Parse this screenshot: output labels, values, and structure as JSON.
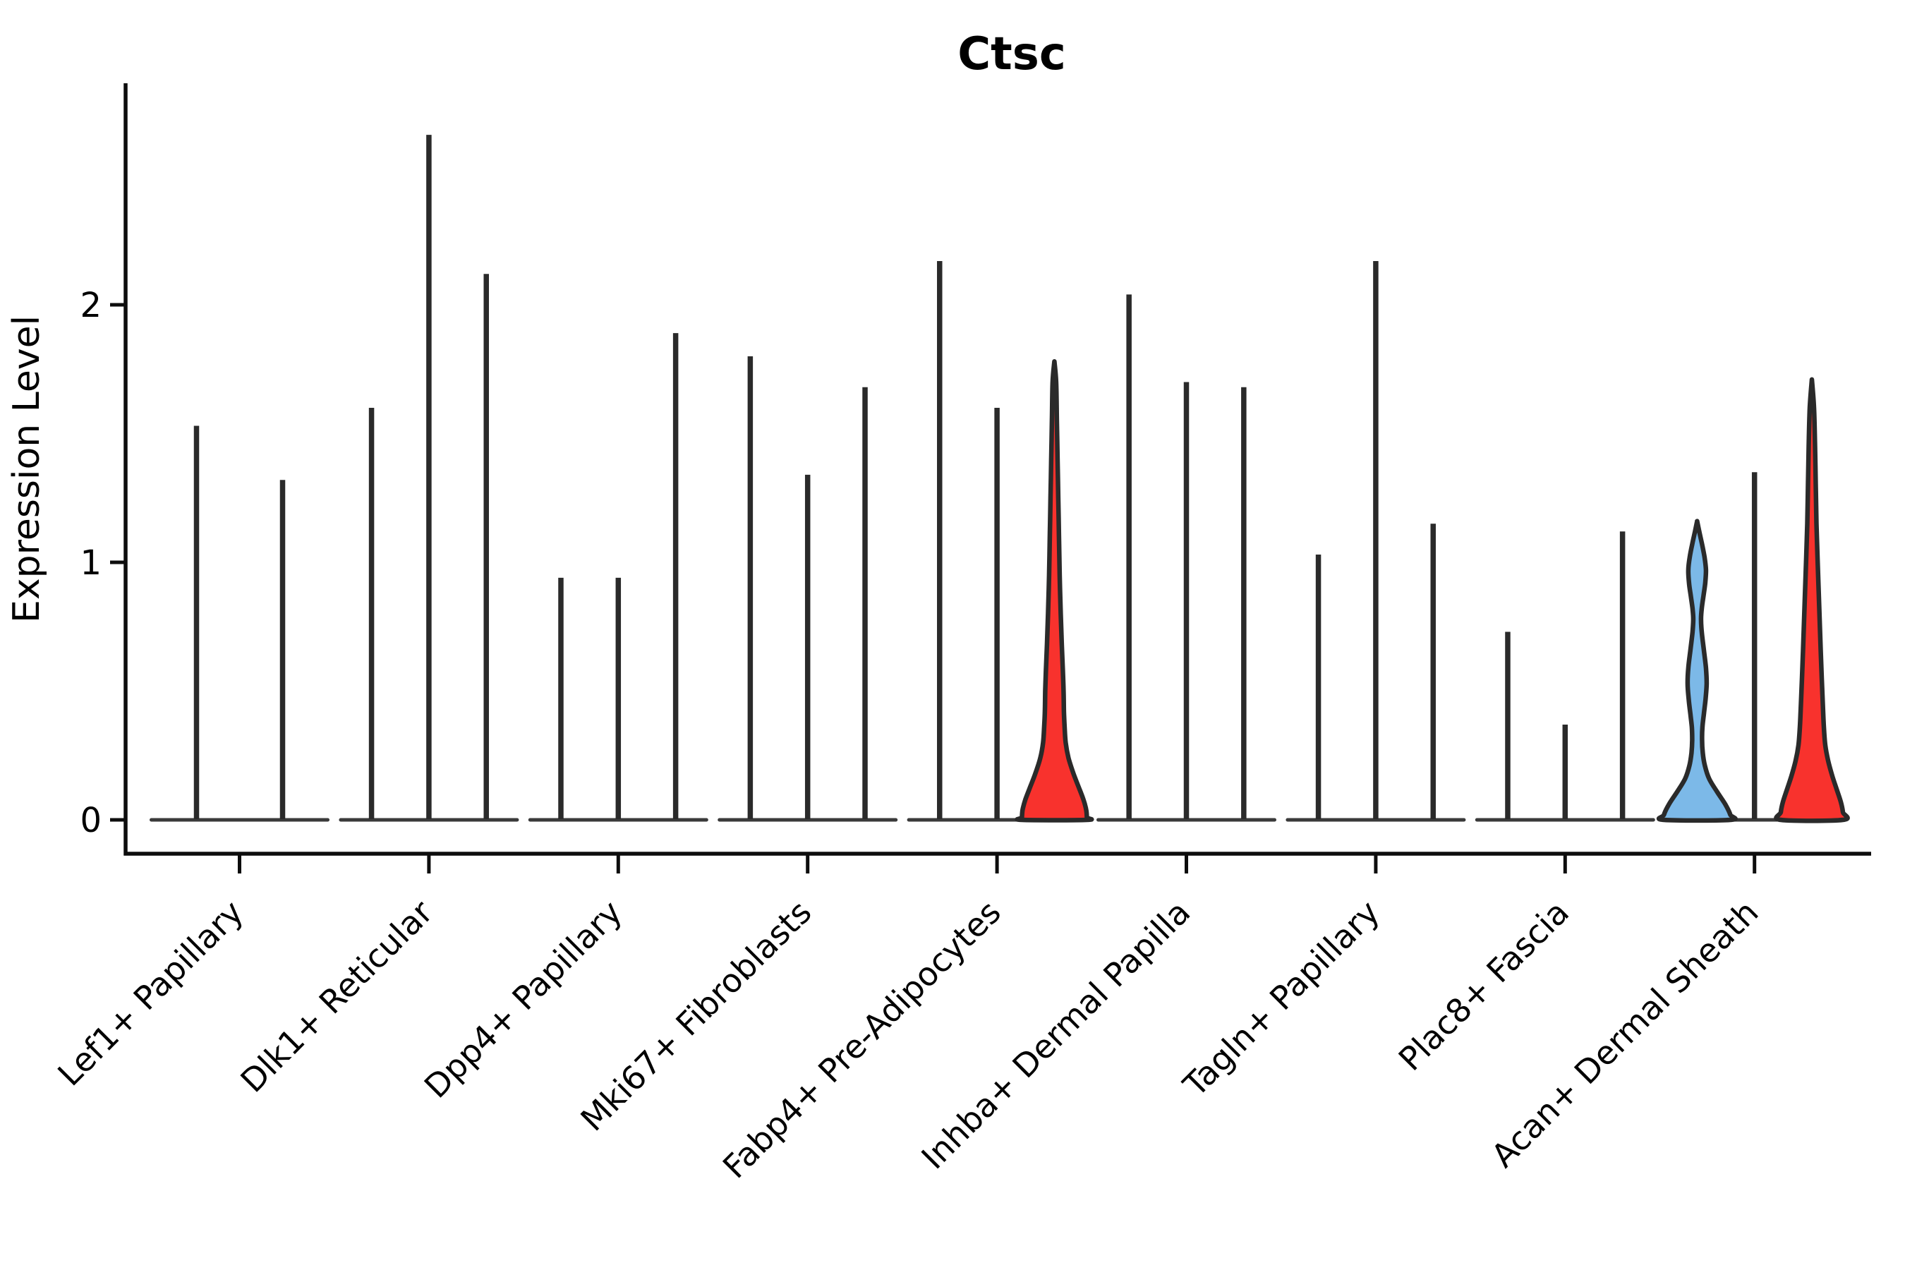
{
  "title": "Ctsc",
  "chart_data": {
    "type": "violin",
    "title": "Ctsc",
    "xlabel": "",
    "ylabel": "Expression Level",
    "ylim": [
      0,
      2.86
    ],
    "yticks": [
      {
        "label": "0",
        "value": 0
      },
      {
        "label": "1",
        "value": 1
      },
      {
        "label": "2",
        "value": 2
      }
    ],
    "grid": false,
    "legend": "none",
    "colors": {
      "outline": "#2A2A2A",
      "axis": "#0d0d0d",
      "baseline": "#3A3A3A",
      "fill_red": "#F8322D",
      "fill_blue": "#7CB9E8"
    },
    "categories": [
      "Lef1+ Papillary",
      "Dlk1+ Reticular",
      "Dpp4+ Papillary",
      "Mki67+ Fibroblasts",
      "Fabp4+ Pre-Adipocytes",
      "Inhba+ Dermal Papilla",
      "Tagln+ Papillary",
      "Plac8+ Fascia",
      "Acan+ Dermal Sheath"
    ],
    "groups": [
      {
        "label": "Lef1+ Papillary",
        "violins": [
          {
            "type": "spike",
            "max": 1.53
          },
          {
            "type": "spike",
            "max": 1.32
          }
        ]
      },
      {
        "label": "Dlk1+ Reticular",
        "violins": [
          {
            "type": "spike",
            "max": 1.6
          },
          {
            "type": "spike",
            "max": 2.66
          },
          {
            "type": "spike",
            "max": 2.12
          }
        ]
      },
      {
        "label": "Dpp4+ Papillary",
        "violins": [
          {
            "type": "spike",
            "max": 0.94
          },
          {
            "type": "spike",
            "max": 0.94
          },
          {
            "type": "spike",
            "max": 1.89
          }
        ]
      },
      {
        "label": "Mki67+ Fibroblasts",
        "violins": [
          {
            "type": "spike",
            "max": 1.8
          },
          {
            "type": "spike",
            "max": 1.34
          },
          {
            "type": "spike",
            "max": 1.68
          }
        ]
      },
      {
        "label": "Fabp4+ Pre-Adipocytes",
        "violins": [
          {
            "type": "spike",
            "max": 2.17
          },
          {
            "type": "spike",
            "max": 1.6
          },
          {
            "type": "filled",
            "max": 1.78,
            "fill": "red",
            "profile": [
              [
                1.78,
                0
              ],
              [
                1.7,
                2.5
              ],
              [
                1.55,
                3.5
              ],
              [
                1.4,
                4.5
              ],
              [
                1.25,
                5.5
              ],
              [
                1.1,
                6.5
              ],
              [
                0.95,
                7.5
              ],
              [
                0.8,
                9
              ],
              [
                0.68,
                10.5
              ],
              [
                0.58,
                12
              ],
              [
                0.5,
                13
              ],
              [
                0.42,
                13.5
              ],
              [
                0.36,
                14.5
              ],
              [
                0.3,
                16
              ],
              [
                0.24,
                20
              ],
              [
                0.18,
                27
              ],
              [
                0.13,
                34
              ],
              [
                0.08,
                41
              ],
              [
                0.04,
                45
              ],
              [
                0.01,
                46
              ],
              [
                0,
                46
              ]
            ]
          }
        ]
      },
      {
        "label": "Inhba+ Dermal Papilla",
        "violins": [
          {
            "type": "spike",
            "max": 2.04
          },
          {
            "type": "spike",
            "max": 1.7
          },
          {
            "type": "spike",
            "max": 1.68
          }
        ]
      },
      {
        "label": "Tagln+ Papillary",
        "violins": [
          {
            "type": "spike",
            "max": 1.03
          },
          {
            "type": "spike",
            "max": 2.17
          },
          {
            "type": "spike",
            "max": 1.15
          }
        ]
      },
      {
        "label": "Plac8+ Fascia",
        "violins": [
          {
            "type": "spike",
            "max": 0.73
          },
          {
            "type": "spike",
            "max": 0.37
          },
          {
            "type": "spike",
            "max": 1.12
          }
        ]
      },
      {
        "label": "Acan+ Dermal Sheath",
        "violins": [
          {
            "type": "filled",
            "max": 1.16,
            "fill": "blue",
            "profile": [
              [
                1.16,
                0
              ],
              [
                1.12,
                3
              ],
              [
                1.07,
                7
              ],
              [
                1.02,
                10.5
              ],
              [
                0.97,
                12.5
              ],
              [
                0.92,
                11.5
              ],
              [
                0.87,
                9
              ],
              [
                0.82,
                6.5
              ],
              [
                0.78,
                5.5
              ],
              [
                0.73,
                6.5
              ],
              [
                0.66,
                9.5
              ],
              [
                0.59,
                12.5
              ],
              [
                0.53,
                13.5
              ],
              [
                0.47,
                12
              ],
              [
                0.41,
                9.5
              ],
              [
                0.36,
                7.5
              ],
              [
                0.31,
                7
              ],
              [
                0.26,
                8
              ],
              [
                0.21,
                11
              ],
              [
                0.16,
                17
              ],
              [
                0.11,
                28
              ],
              [
                0.06,
                40
              ],
              [
                0.02,
                47
              ],
              [
                0,
                47
              ]
            ]
          },
          {
            "type": "spike",
            "max": 1.35
          },
          {
            "type": "filled",
            "max": 1.71,
            "fill": "red",
            "profile": [
              [
                1.71,
                0
              ],
              [
                1.6,
                3
              ],
              [
                1.45,
                4.5
              ],
              [
                1.3,
                5.5
              ],
              [
                1.15,
                6.5
              ],
              [
                1.02,
                8
              ],
              [
                0.9,
                9.5
              ],
              [
                0.78,
                11
              ],
              [
                0.66,
                12.5
              ],
              [
                0.55,
                14
              ],
              [
                0.45,
                15.5
              ],
              [
                0.36,
                17
              ],
              [
                0.29,
                19
              ],
              [
                0.23,
                23
              ],
              [
                0.17,
                29
              ],
              [
                0.12,
                35
              ],
              [
                0.07,
                41
              ],
              [
                0.03,
                44
              ],
              [
                0,
                44
              ]
            ]
          }
        ]
      }
    ]
  }
}
